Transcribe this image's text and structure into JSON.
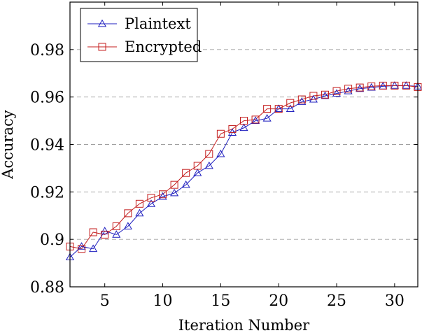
{
  "chart_data": {
    "type": "line",
    "title": "",
    "xlabel": "Iteration Number",
    "ylabel": "Accuracy",
    "xlim": [
      2,
      32
    ],
    "ylim": [
      0.88,
      1.0
    ],
    "xticks": [
      5,
      10,
      15,
      20,
      25,
      30
    ],
    "yticks": [
      0.88,
      0.9,
      0.92,
      0.94,
      0.96,
      0.98
    ],
    "xtick_labels": [
      "5",
      "10",
      "15",
      "20",
      "25",
      "30"
    ],
    "ytick_labels": [
      "0.88",
      "0.9",
      "0.92",
      "0.94",
      "0.96",
      "0.98"
    ],
    "grid": "horizontal dashed",
    "legend_position": "top-left",
    "x": [
      2,
      3,
      4,
      5,
      6,
      7,
      8,
      9,
      10,
      11,
      12,
      13,
      14,
      15,
      16,
      17,
      18,
      19,
      20,
      21,
      22,
      23,
      24,
      25,
      26,
      27,
      28,
      29,
      30,
      31,
      32
    ],
    "series": [
      {
        "name": "Plaintext",
        "color": "#1f1fbf",
        "marker": "triangle",
        "values": [
          0.8925,
          0.897,
          0.896,
          0.9035,
          0.902,
          0.9055,
          0.911,
          0.915,
          0.918,
          0.9195,
          0.923,
          0.928,
          0.931,
          0.936,
          0.945,
          0.947,
          0.95,
          0.951,
          0.955,
          0.955,
          0.958,
          0.959,
          0.9605,
          0.9615,
          0.9625,
          0.9635,
          0.964,
          0.9645,
          0.9648,
          0.9648,
          0.9645
        ]
      },
      {
        "name": "Encrypted",
        "color": "#c41e1e",
        "marker": "square",
        "values": [
          0.897,
          0.896,
          0.903,
          0.902,
          0.9055,
          0.911,
          0.915,
          0.9175,
          0.919,
          0.923,
          0.928,
          0.931,
          0.936,
          0.9445,
          0.9465,
          0.95,
          0.9505,
          0.955,
          0.955,
          0.9575,
          0.959,
          0.9605,
          0.961,
          0.9625,
          0.9635,
          0.964,
          0.9645,
          0.9648,
          0.9648,
          0.9648,
          0.9642
        ]
      }
    ]
  }
}
